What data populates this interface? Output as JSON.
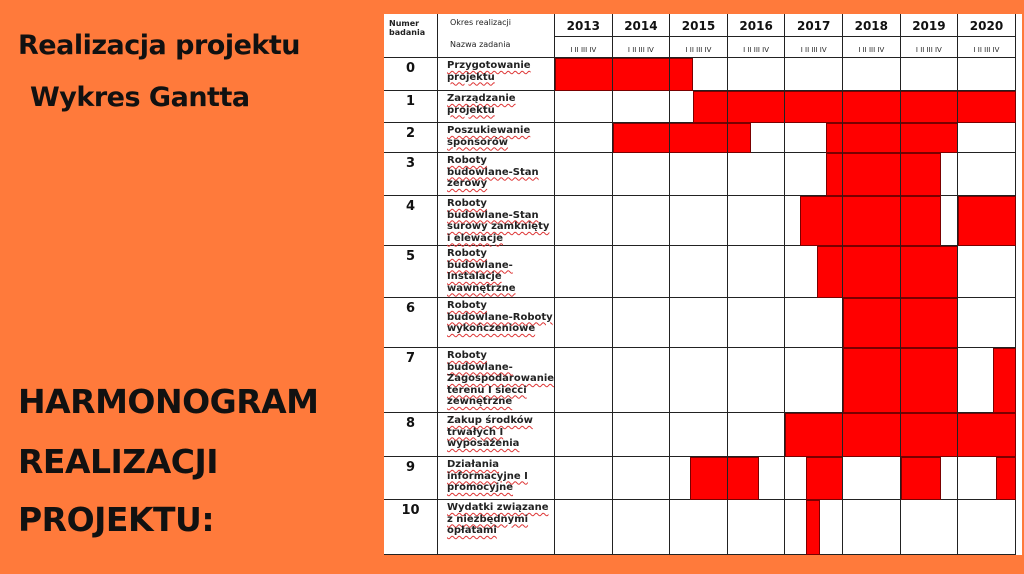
{
  "slide": {
    "title_line1": "Realizacja projektu",
    "title_line2": "Wykres Gantta",
    "heading_line1": "HARMONOGRAM",
    "heading_line2": "REALIZACJI",
    "heading_line3": "PROJEKTU:"
  },
  "colors": {
    "background": "#FF7A3B",
    "bar": "#FF0000",
    "table": "#FFFFFF"
  },
  "chart_data": {
    "type": "gantt",
    "header": {
      "number_label": "Numer badania",
      "period_label": "Okres realizacji",
      "task_label": "Nazwa zadania",
      "quarter_label": "I II III IV"
    },
    "years": [
      "2013",
      "2014",
      "2015",
      "2016",
      "2017",
      "2018",
      "2019",
      "2020"
    ],
    "xlim": [
      2013,
      2021
    ],
    "tasks": [
      {
        "id": "0",
        "name": "Przygotowanie projektu",
        "bars": [
          [
            2013.0,
            2015.4
          ]
        ]
      },
      {
        "id": "1",
        "name": "Zarządzanie projektu",
        "bars": [
          [
            2015.4,
            2021.0
          ]
        ]
      },
      {
        "id": "2",
        "name": "Poszukiewanie sponsorów",
        "bars": [
          [
            2014.0,
            2016.4
          ],
          [
            2017.7,
            2020.0
          ]
        ]
      },
      {
        "id": "3",
        "name": "Roboty budowlane-Stan zerowy",
        "bars": [
          [
            2017.7,
            2019.7
          ]
        ]
      },
      {
        "id": "4",
        "name": "Roboty budowlane-Stan surowy zamknięty i elewacje",
        "bars": [
          [
            2017.25,
            2019.7
          ],
          [
            2020.0,
            2021.0
          ]
        ]
      },
      {
        "id": "5",
        "name": "Roboty budowlane-Instalacje wawnętrzne",
        "bars": [
          [
            2017.55,
            2020.0
          ]
        ]
      },
      {
        "id": "6",
        "name": "Roboty budowlane-Roboty wykończeniowe",
        "bars": [
          [
            2018.0,
            2020.0
          ]
        ]
      },
      {
        "id": "7",
        "name": "Roboty budowlane-Zagospodarowanie terenu I siecci zewnętrzne",
        "bars": [
          [
            2018.0,
            2020.0
          ],
          [
            2020.6,
            2021.0
          ]
        ]
      },
      {
        "id": "8",
        "name": "Zakup środków trwałych I wyposażenia",
        "bars": [
          [
            2017.0,
            2021.0
          ]
        ]
      },
      {
        "id": "9",
        "name": "Działania informacyjne I promocyjne",
        "bars": [
          [
            2015.35,
            2016.55
          ],
          [
            2017.35,
            2018.0
          ],
          [
            2019.0,
            2019.7
          ],
          [
            2020.65,
            2021.0
          ]
        ]
      },
      {
        "id": "10",
        "name": "Wydatki związane z niezbędnymi opłatami",
        "bars": [
          [
            2017.35,
            2017.6
          ]
        ]
      }
    ]
  }
}
